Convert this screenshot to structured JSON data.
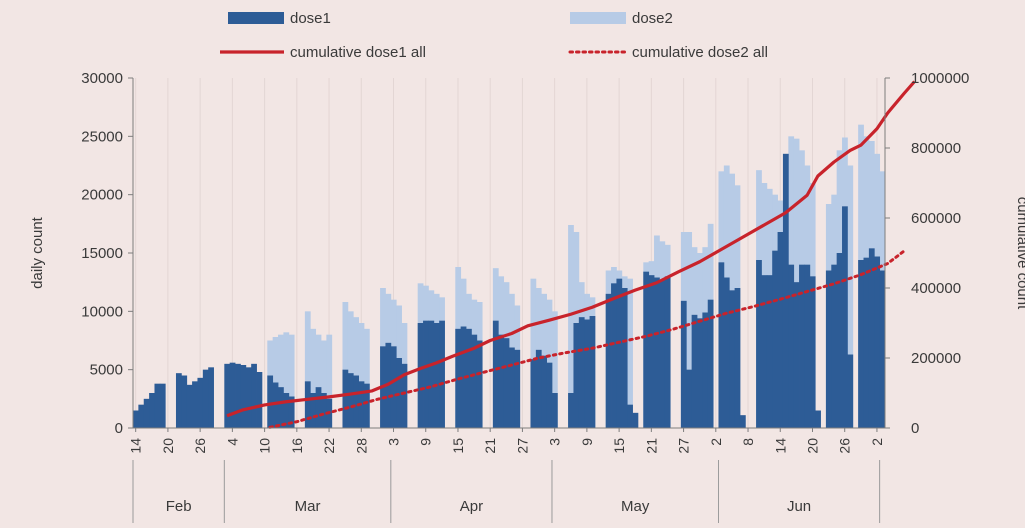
{
  "chart_data": {
    "type": "bar",
    "start_label": "14",
    "end_label": "2",
    "legend": [
      {
        "key": "dose1",
        "label": "dose1",
        "style": "bar",
        "color": "#2d5c96"
      },
      {
        "key": "dose2",
        "label": "dose2",
        "style": "bar",
        "color": "#b7cbe6"
      },
      {
        "key": "cum_dose1",
        "label": "cumulative dose1 all",
        "style": "line",
        "color": "#c8232b"
      },
      {
        "key": "cum_dose2",
        "label": "cumulative dose2 all",
        "style": "dotted",
        "color": "#c8232b"
      }
    ],
    "ylabel_left": "daily count",
    "ylabel_right": "cumulative count",
    "ylim_left": [
      0,
      30000
    ],
    "yticks_left": [
      "0",
      "5000",
      "10000",
      "15000",
      "20000",
      "25000",
      "30000"
    ],
    "ylim_right": [
      0,
      1000000
    ],
    "yticks_right": [
      "0",
      "200000",
      "400000",
      "600000",
      "800000",
      "1000000"
    ],
    "day_tick_labels": [
      "14",
      "20",
      "26",
      "4",
      "10",
      "16",
      "22",
      "28",
      "3",
      "9",
      "15",
      "21",
      "27",
      "3",
      "9",
      "15",
      "21",
      "27",
      "2",
      "8",
      "14",
      "20",
      "26",
      "2"
    ],
    "months": [
      {
        "label": "Feb",
        "start": 0,
        "end": 17
      },
      {
        "label": "Mar",
        "start": 17,
        "end": 48
      },
      {
        "label": "Apr",
        "start": 48,
        "end": 78
      },
      {
        "label": "May",
        "start": 78,
        "end": 109
      },
      {
        "label": "Jun",
        "start": 109,
        "end": 139
      }
    ],
    "dose1": [
      1500,
      2000,
      2500,
      3000,
      3800,
      3800,
      0,
      0,
      4700,
      4500,
      3700,
      4000,
      4300,
      5000,
      5200,
      0,
      0,
      5500,
      5600,
      5500,
      5400,
      5200,
      5500,
      4800,
      0,
      4500,
      3900,
      3500,
      3000,
      2700,
      0,
      0,
      4000,
      3000,
      3500,
      3000,
      2500,
      0,
      0,
      5000,
      4700,
      4500,
      4000,
      3800,
      0,
      0,
      7000,
      7300,
      7000,
      6000,
      5500,
      0,
      0,
      9000,
      9200,
      9200,
      9000,
      9200,
      0,
      0,
      8500,
      8700,
      8500,
      8000,
      7500,
      0,
      0,
      9200,
      8000,
      7700,
      6900,
      6700,
      0,
      0,
      5900,
      6700,
      6200,
      5600,
      3000,
      0,
      0,
      3000,
      9000,
      9500,
      9300,
      9600,
      0,
      0,
      11500,
      12400,
      12800,
      12000,
      2000,
      1300,
      0,
      13400,
      13100,
      12900,
      12700,
      13000,
      0,
      0,
      10900,
      5000,
      9700,
      9400,
      9900,
      11000,
      0,
      14200,
      12900,
      11800,
      12000,
      1100,
      0,
      0,
      14400,
      13100,
      13100,
      15200,
      16800,
      23500,
      14000,
      12500,
      14000,
      14000,
      13000,
      1500,
      0,
      13500,
      14000,
      15000,
      19000,
      6300,
      0,
      14400,
      14600,
      15400,
      14700,
      13500
    ],
    "dose2": [
      0,
      0,
      0,
      0,
      0,
      0,
      0,
      0,
      0,
      0,
      0,
      0,
      0,
      0,
      0,
      0,
      0,
      0,
      0,
      0,
      0,
      0,
      0,
      0,
      0,
      7500,
      7800,
      8000,
      8200,
      8000,
      0,
      0,
      10000,
      8500,
      8000,
      7500,
      8000,
      0,
      0,
      10800,
      10000,
      9500,
      9000,
      8500,
      0,
      0,
      12000,
      11500,
      11000,
      10500,
      9000,
      0,
      0,
      12400,
      12200,
      11800,
      11500,
      11200,
      0,
      0,
      13800,
      12800,
      11500,
      11000,
      10800,
      0,
      0,
      13700,
      13000,
      12500,
      11500,
      10500,
      0,
      0,
      12800,
      12000,
      11500,
      11000,
      10000,
      0,
      0,
      17400,
      16800,
      12500,
      11500,
      11200,
      0,
      0,
      13500,
      13800,
      13500,
      13000,
      12800,
      0,
      0,
      14200,
      14300,
      16500,
      16000,
      15700,
      0,
      0,
      16800,
      16800,
      15500,
      15000,
      15500,
      17500,
      0,
      22000,
      22500,
      21800,
      20800,
      0,
      0,
      0,
      22100,
      21000,
      20500,
      20000,
      19500,
      23500,
      25000,
      24800,
      23800,
      22500,
      21000,
      0,
      0,
      19200,
      20000,
      23800,
      24900,
      22500,
      0,
      26000,
      25000,
      24600,
      23500,
      22000
    ],
    "cum_dose1": [
      [
        17,
        35000
      ],
      [
        20,
        52000
      ],
      [
        24,
        66000
      ],
      [
        28,
        75000
      ],
      [
        32,
        82000
      ],
      [
        36,
        89000
      ],
      [
        40,
        97000
      ],
      [
        44,
        106000
      ],
      [
        47,
        125000
      ],
      [
        50,
        152000
      ],
      [
        53,
        170000
      ],
      [
        56,
        186000
      ],
      [
        59,
        205000
      ],
      [
        63,
        228000
      ],
      [
        66,
        250000
      ],
      [
        70,
        270000
      ],
      [
        73,
        292000
      ],
      [
        77,
        308000
      ],
      [
        81,
        325000
      ],
      [
        85,
        345000
      ],
      [
        89,
        370000
      ],
      [
        93,
        394000
      ],
      [
        97,
        415000
      ],
      [
        101,
        446000
      ],
      [
        105,
        475000
      ],
      [
        109,
        510000
      ],
      [
        113,
        545000
      ],
      [
        117,
        580000
      ],
      [
        121,
        615000
      ],
      [
        125,
        665000
      ],
      [
        127,
        720000
      ],
      [
        130,
        760000
      ],
      [
        133,
        793000
      ],
      [
        135,
        808000
      ],
      [
        138,
        855000
      ],
      [
        140,
        900000
      ],
      [
        143,
        955000
      ],
      [
        145,
        990000
      ]
    ],
    "cum_dose2": [
      [
        25,
        2000
      ],
      [
        30,
        18000
      ],
      [
        35,
        40000
      ],
      [
        40,
        60000
      ],
      [
        45,
        82000
      ],
      [
        50,
        100000
      ],
      [
        55,
        118000
      ],
      [
        60,
        140000
      ],
      [
        65,
        160000
      ],
      [
        70,
        180000
      ],
      [
        75,
        200000
      ],
      [
        80,
        215000
      ],
      [
        85,
        228000
      ],
      [
        90,
        245000
      ],
      [
        95,
        262000
      ],
      [
        100,
        282000
      ],
      [
        105,
        305000
      ],
      [
        110,
        328000
      ],
      [
        115,
        347000
      ],
      [
        120,
        368000
      ],
      [
        125,
        390000
      ],
      [
        130,
        412000
      ],
      [
        135,
        438000
      ],
      [
        140,
        470000
      ],
      [
        143,
        505000
      ]
    ]
  }
}
